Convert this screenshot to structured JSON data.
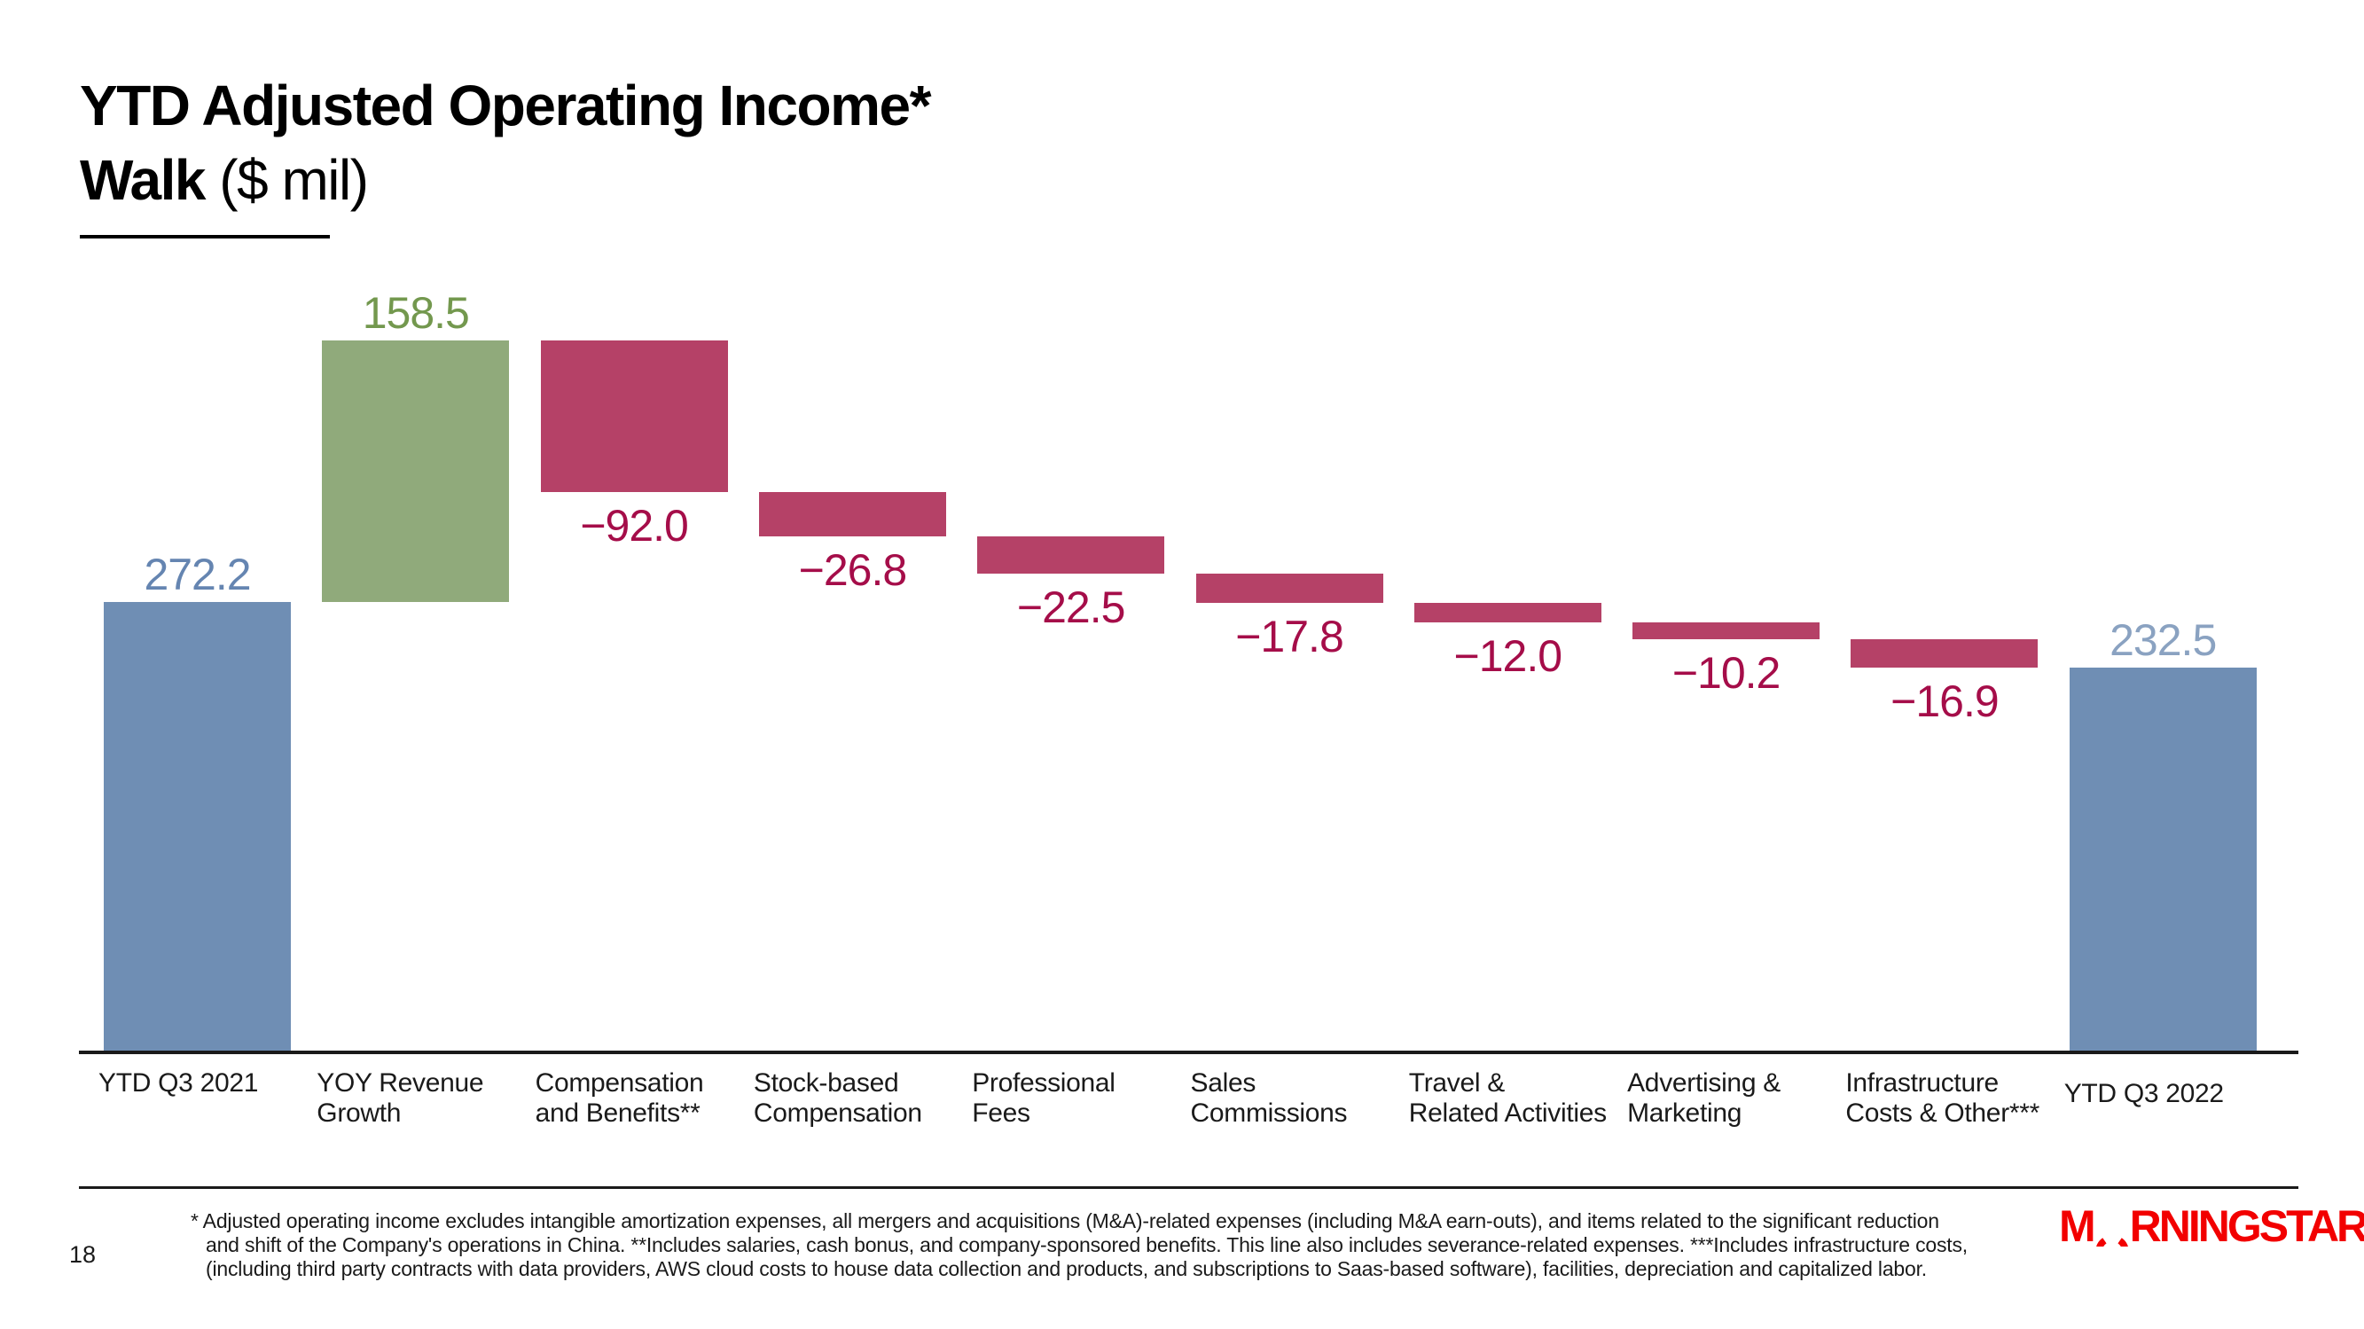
{
  "slide": {
    "title_line1": "YTD Adjusted Operating Income*",
    "title_line2_bold": "Walk",
    "title_line2_rest": " ($ mil)",
    "page_number": "18",
    "footnote_lines": [
      "* Adjusted operating income excludes intangible amortization expenses, all mergers and acquisitions (M&A)-related expenses (including M&A earn-outs), and items related to the significant reduction",
      "and shift of the Company's operations in China. **Includes salaries, cash bonus, and company-sponsored benefits. This line also includes severance-related expenses. ***Includes infrastructure costs,",
      "(including third party contracts with data providers, AWS cloud costs to house data collection and products, and subscriptions to Saas-based software), facilities, depreciation and capitalized labor."
    ],
    "logo": {
      "m": "M",
      "rest": "RNINGSTAR",
      "registered": "®",
      "color": "#f20000"
    }
  },
  "chart_data": {
    "type": "bar",
    "subtype": "waterfall",
    "title": "YTD Adjusted Operating Income* Walk ($ mil)",
    "xlabel": "",
    "ylabel": "$ mil",
    "ylim": [
      0,
      430.7
    ],
    "grid": false,
    "legend": false,
    "axis_color": "#1a1a1a",
    "categories": [
      "YTD Q3 2021",
      "YOY Revenue Growth",
      "Compensation and Benefits**",
      "Stock-based Compensation",
      "Professional Fees",
      "Sales Commissions",
      "Travel & Related Activities",
      "Advertising & Marketing",
      "Infrastructure Costs & Other***",
      "YTD Q3 2022"
    ],
    "values": [
      272.2,
      158.5,
      -92.0,
      -26.8,
      -22.5,
      -17.8,
      -12.0,
      -10.2,
      -16.9,
      232.5
    ],
    "bars": [
      {
        "label_lines": [
          "YTD Q3 2021"
        ],
        "value": 272.2,
        "display": "272.2",
        "kind": "total",
        "bar_color": "#6F8EB4",
        "label_color": "#6585B1"
      },
      {
        "label_lines": [
          "YOY Revenue",
          "Growth"
        ],
        "value": 158.5,
        "display": "158.5",
        "kind": "increase",
        "bar_color": "#90AA7B",
        "label_color": "#73984E"
      },
      {
        "label_lines": [
          "Compensation",
          "and Benefits**"
        ],
        "value": -92.0,
        "display": "−92.0",
        "kind": "decrease",
        "bar_color": "#B54167",
        "label_color": "#A50D49"
      },
      {
        "label_lines": [
          "Stock-based",
          "Compensation"
        ],
        "value": -26.8,
        "display": "−26.8",
        "kind": "decrease",
        "bar_color": "#B54167",
        "label_color": "#A50D49"
      },
      {
        "label_lines": [
          "Professional",
          "Fees"
        ],
        "value": -22.5,
        "display": "−22.5",
        "kind": "decrease",
        "bar_color": "#B54167",
        "label_color": "#A50D49"
      },
      {
        "label_lines": [
          "Sales",
          "Commissions"
        ],
        "value": -17.8,
        "display": "−17.8",
        "kind": "decrease",
        "bar_color": "#B54167",
        "label_color": "#A50D49"
      },
      {
        "label_lines": [
          "Travel &",
          "Related Activities"
        ],
        "value": -12.0,
        "display": "−12.0",
        "kind": "decrease",
        "bar_color": "#B54167",
        "label_color": "#A50D49"
      },
      {
        "label_lines": [
          "Advertising &",
          "Marketing"
        ],
        "value": -10.2,
        "display": "−10.2",
        "kind": "decrease",
        "bar_color": "#B54167",
        "label_color": "#A50D49"
      },
      {
        "label_lines": [
          "Infrastructure",
          "Costs & Other***"
        ],
        "value": -16.9,
        "display": "−16.9",
        "kind": "decrease",
        "bar_color": "#B54167",
        "label_color": "#A50D49"
      },
      {
        "label_lines": [
          "YTD Q3 2022"
        ],
        "value": 232.5,
        "display": "232.5",
        "kind": "total",
        "bar_color": "#6F8EB4",
        "label_color": "#8AA2C1"
      }
    ]
  }
}
